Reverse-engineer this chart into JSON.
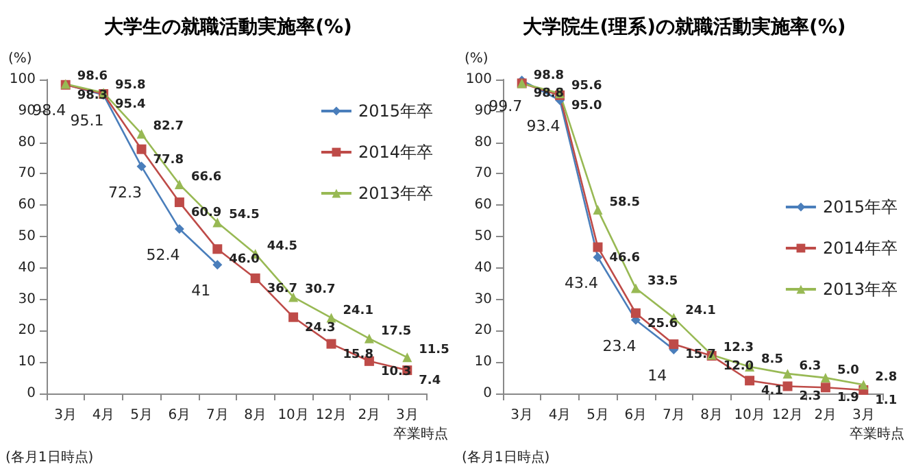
{
  "chart_data": [
    {
      "type": "line",
      "title": "大学生の就職活動実施率(%)",
      "ylabel": "(%)",
      "annotations": [
        "(各月1日時点)",
        "卒業時点"
      ],
      "categories": [
        "3月",
        "4月",
        "5月",
        "6月",
        "7月",
        "8月",
        "10月",
        "12月",
        "2月",
        "3月"
      ],
      "ylim": [
        0,
        100
      ],
      "yticks": [
        0,
        10,
        20,
        30,
        40,
        50,
        60,
        70,
        80,
        90,
        100
      ],
      "grid": false,
      "legend": "top right",
      "line_style": "solid",
      "series": [
        {
          "name": "2015年卒",
          "color": "#4a7ebb",
          "marker": "diamond",
          "values": [
            98.4,
            95.1,
            72.3,
            52.4,
            41,
            null,
            null,
            null,
            null,
            null
          ],
          "value_labels": [
            "98.4",
            "95.1",
            "72.3",
            "52.4",
            "41",
            null,
            null,
            null,
            null,
            null
          ]
        },
        {
          "name": "2014年卒",
          "color": "#be4b48",
          "marker": "square",
          "values": [
            98.3,
            95.4,
            77.8,
            60.9,
            46.0,
            36.7,
            24.3,
            15.8,
            10.3,
            7.4
          ],
          "value_labels": [
            "98.3",
            "95.4",
            "77.8",
            "60.9",
            "46.0",
            "36.7",
            "24.3",
            "15.8",
            "10.3",
            "7.4"
          ]
        },
        {
          "name": "2013年卒",
          "color": "#98b954",
          "marker": "triangle",
          "values": [
            98.6,
            95.8,
            82.7,
            66.6,
            54.5,
            44.5,
            30.7,
            24.1,
            17.5,
            11.5
          ],
          "value_labels": [
            "98.6",
            "95.8",
            "82.7",
            "66.6",
            "54.5",
            "44.5",
            "30.7",
            "24.1",
            "17.5",
            "11.5"
          ]
        }
      ]
    },
    {
      "type": "line",
      "title": "大学院生(理系)の就職活動実施率(%)",
      "ylabel": "(%)",
      "annotations": [
        "(各月1日時点)",
        "卒業時点"
      ],
      "categories": [
        "3月",
        "4月",
        "5月",
        "6月",
        "7月",
        "8月",
        "10月",
        "12月",
        "2月",
        "3月"
      ],
      "ylim": [
        0,
        100
      ],
      "yticks": [
        0,
        10,
        20,
        30,
        40,
        50,
        60,
        70,
        80,
        90,
        100
      ],
      "grid": false,
      "legend": "right",
      "line_style": "solid",
      "series": [
        {
          "name": "2015年卒",
          "color": "#4a7ebb",
          "marker": "diamond",
          "values": [
            99.7,
            93.4,
            43.4,
            23.4,
            14,
            null,
            null,
            null,
            null,
            null
          ],
          "value_labels": [
            "99.7",
            "93.4",
            "43.4",
            "23.4",
            "14",
            null,
            null,
            null,
            null,
            null
          ]
        },
        {
          "name": "2014年卒",
          "color": "#be4b48",
          "marker": "square",
          "values": [
            98.8,
            95.0,
            46.6,
            25.6,
            15.7,
            12.0,
            4.1,
            2.3,
            1.9,
            1.1
          ],
          "value_labels": [
            "98.8",
            "95.0",
            "46.6",
            "25.6",
            "15.7",
            "12.0",
            "4.1",
            "2.3",
            "1.9",
            "1.1"
          ]
        },
        {
          "name": "2013年卒",
          "color": "#98b954",
          "marker": "triangle",
          "values": [
            98.8,
            95.6,
            58.5,
            33.5,
            24.1,
            12.3,
            8.5,
            6.3,
            5.0,
            2.8
          ],
          "value_labels": [
            "98.8",
            "95.6",
            "58.5",
            "33.5",
            "24.1",
            "12.3",
            "8.5",
            "6.3",
            "5.0",
            "2.8"
          ]
        }
      ]
    }
  ]
}
